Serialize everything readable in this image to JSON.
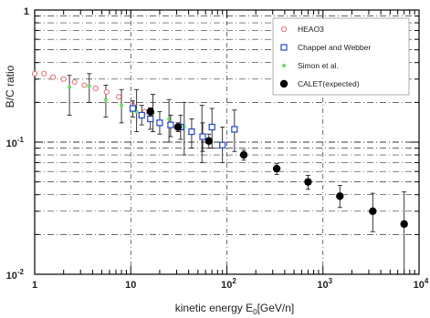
{
  "chart_data": {
    "type": "scatter",
    "ylabel": "B/C ratio",
    "xlabel_main": "kinetic energy E",
    "xlabel_sub": "0",
    "xlabel_unit": "[GeV/n]",
    "x_scale": "log",
    "y_scale": "log",
    "xlim": [
      1,
      10000
    ],
    "ylim": [
      0.01,
      1
    ],
    "grid": "dashed",
    "legend_position": "top-right",
    "x_ticks": [
      {
        "value": 1,
        "base": "1",
        "exp": ""
      },
      {
        "value": 10,
        "base": "10",
        "exp": ""
      },
      {
        "value": 100,
        "base": "10",
        "exp": "2"
      },
      {
        "value": 1000,
        "base": "10",
        "exp": "3"
      },
      {
        "value": 10000,
        "base": "10",
        "exp": "4"
      }
    ],
    "y_ticks": [
      {
        "value": 1,
        "base": "1",
        "exp": ""
      },
      {
        "value": 0.1,
        "base": "10",
        "exp": "-1"
      },
      {
        "value": 0.01,
        "base": "10",
        "exp": "-2"
      }
    ],
    "series": [
      {
        "name": "HEAO3",
        "marker": "open-circle",
        "color": "#e07070",
        "points": [
          {
            "x": 1.0,
            "y": 0.33
          },
          {
            "x": 1.25,
            "y": 0.33
          },
          {
            "x": 1.55,
            "y": 0.31
          },
          {
            "x": 2.0,
            "y": 0.3
          },
          {
            "x": 2.6,
            "y": 0.285
          },
          {
            "x": 3.3,
            "y": 0.27
          },
          {
            "x": 4.3,
            "y": 0.255
          },
          {
            "x": 5.6,
            "y": 0.24
          },
          {
            "x": 7.5,
            "y": 0.22
          },
          {
            "x": 10.5,
            "y": 0.19
          },
          {
            "x": 14.0,
            "y": 0.17
          }
        ]
      },
      {
        "name": "Chappel and Webber",
        "marker": "open-square",
        "color": "#2244cc",
        "points": [
          {
            "x": 10.5,
            "y": 0.18,
            "lo": 0.155,
            "hi": 0.205
          },
          {
            "x": 13.0,
            "y": 0.16,
            "lo": 0.135,
            "hi": 0.19
          },
          {
            "x": 16.0,
            "y": 0.15,
            "lo": 0.125,
            "hi": 0.18
          },
          {
            "x": 20.0,
            "y": 0.14,
            "lo": 0.115,
            "hi": 0.17
          },
          {
            "x": 26.0,
            "y": 0.135,
            "lo": 0.11,
            "hi": 0.16
          },
          {
            "x": 33.0,
            "y": 0.13,
            "lo": 0.105,
            "hi": 0.16
          },
          {
            "x": 43.0,
            "y": 0.12,
            "lo": 0.09,
            "hi": 0.15
          },
          {
            "x": 56.0,
            "y": 0.11,
            "lo": 0.085,
            "hi": 0.14
          },
          {
            "x": 70.0,
            "y": 0.13,
            "lo": 0.09,
            "hi": 0.18
          },
          {
            "x": 90.0,
            "y": 0.095,
            "lo": 0.07,
            "hi": 0.13
          },
          {
            "x": 120.0,
            "y": 0.125,
            "lo": 0.085,
            "hi": 0.175
          }
        ]
      },
      {
        "name": "Simon et al.",
        "marker": "small-dot",
        "color": "#66dd66",
        "points": [
          {
            "x": 2.3,
            "y": 0.26,
            "lo": 0.16,
            "hi": 0.32
          },
          {
            "x": 3.7,
            "y": 0.265,
            "lo": 0.2,
            "hi": 0.33
          },
          {
            "x": 5.5,
            "y": 0.21,
            "lo": 0.155,
            "hi": 0.27
          },
          {
            "x": 8.0,
            "y": 0.19,
            "lo": 0.14,
            "hi": 0.25
          },
          {
            "x": 11.5,
            "y": 0.17,
            "lo": 0.12,
            "hi": 0.25
          },
          {
            "x": 17.0,
            "y": 0.165,
            "lo": 0.12,
            "hi": 0.23
          },
          {
            "x": 25.0,
            "y": 0.15,
            "lo": 0.1,
            "hi": 0.21
          },
          {
            "x": 36.0,
            "y": 0.13,
            "lo": 0.08,
            "hi": 0.2
          },
          {
            "x": 55.0,
            "y": 0.11,
            "lo": 0.07,
            "hi": 0.19
          }
        ]
      },
      {
        "name": "CALET(expected)",
        "marker": "filled-circle",
        "color": "#000000",
        "points": [
          {
            "x": 16.0,
            "y": 0.17,
            "lo": 0.158,
            "hi": 0.182
          },
          {
            "x": 31.0,
            "y": 0.13,
            "lo": 0.12,
            "hi": 0.14
          },
          {
            "x": 65.0,
            "y": 0.102,
            "lo": 0.09,
            "hi": 0.115
          },
          {
            "x": 150.0,
            "y": 0.08,
            "lo": 0.073,
            "hi": 0.087
          },
          {
            "x": 330.0,
            "y": 0.063,
            "lo": 0.057,
            "hi": 0.069
          },
          {
            "x": 700.0,
            "y": 0.05,
            "lo": 0.044,
            "hi": 0.056
          },
          {
            "x": 1500.0,
            "y": 0.039,
            "lo": 0.032,
            "hi": 0.047
          },
          {
            "x": 3300.0,
            "y": 0.03,
            "lo": 0.021,
            "hi": 0.041
          },
          {
            "x": 7000.0,
            "y": 0.024,
            "lo": 0.01,
            "hi": 0.042
          }
        ]
      }
    ]
  }
}
